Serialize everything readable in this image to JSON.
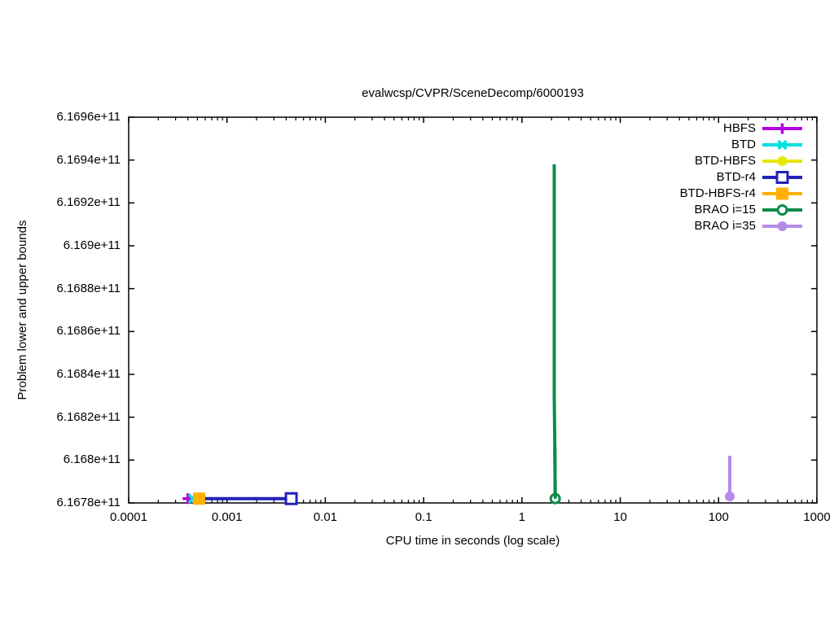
{
  "chart_data": {
    "type": "line",
    "title": "evalwcsp/CVPR/SceneDecomp/6000193",
    "xlabel": "CPU time in seconds (log scale)",
    "ylabel": "Problem lower and upper bounds",
    "x_scale": "log",
    "xlim": [
      0.0001,
      1000
    ],
    "ylim": [
      616780000000.0,
      616960000000.0
    ],
    "grid": false,
    "legend_position": "top-right-inside",
    "axis_color": "#000000",
    "background_color": "#ffffff",
    "x_ticks": [
      0.0001,
      0.001,
      0.01,
      0.1,
      1,
      10,
      100,
      1000
    ],
    "x_tick_labels": [
      "0.0001",
      "0.001",
      "0.01",
      "0.1",
      "1",
      "10",
      "100",
      "1000"
    ],
    "y_ticks": [
      616780000000.0,
      616800000000.0,
      616820000000.0,
      616840000000.0,
      616860000000.0,
      616880000000.0,
      616900000000.0,
      616920000000.0,
      616940000000.0,
      616960000000.0
    ],
    "y_tick_labels": [
      "6.1678e+11",
      "6.168e+11",
      "6.1682e+11",
      "6.1684e+11",
      "6.1686e+11",
      "6.1688e+11",
      "6.169e+11",
      "6.1692e+11",
      "6.1694e+11",
      "6.1696e+11"
    ],
    "series": [
      {
        "name": "HBFS",
        "color": "#b400e0",
        "marker": "plus",
        "line": [],
        "markers": [
          [
            0.0004,
            616782000000.0
          ]
        ]
      },
      {
        "name": "BTD",
        "color": "#00e0e0",
        "marker": "cross",
        "line": [],
        "markers": [
          [
            0.00045,
            616782000000.0
          ]
        ]
      },
      {
        "name": "BTD-HBFS",
        "color": "#e6e600",
        "marker": "asterisk",
        "line": [],
        "markers": [
          [
            0.00055,
            616782000000.0
          ]
        ]
      },
      {
        "name": "BTD-r4",
        "color": "#2222bb",
        "marker": "open-square",
        "line": [
          [
            0.0005,
            616782000000.0
          ],
          [
            0.0045,
            616782000000.0
          ]
        ],
        "markers": [
          [
            0.0045,
            616782000000.0
          ]
        ]
      },
      {
        "name": "BTD-HBFS-r4",
        "color": "#ffb000",
        "marker": "filled-square",
        "line": [],
        "markers": [
          [
            0.00052,
            616782000000.0
          ]
        ]
      },
      {
        "name": "BRAO i=15",
        "color": "#0c8c46",
        "marker": "open-circle",
        "line": [
          [
            2.13,
            616938000000.0
          ],
          [
            2.13,
            616830000000.0
          ],
          [
            2.16,
            616806000000.0
          ],
          [
            2.18,
            616782000000.0
          ]
        ],
        "markers": [
          [
            2.18,
            616782000000.0
          ]
        ]
      },
      {
        "name": "BRAO i=35",
        "color": "#b48ce8",
        "marker": "filled-circle",
        "line": [
          [
            130,
            616802000000.0
          ],
          [
            130,
            616783000000.0
          ]
        ],
        "markers": [
          [
            130,
            616783000000.0
          ]
        ]
      }
    ]
  }
}
